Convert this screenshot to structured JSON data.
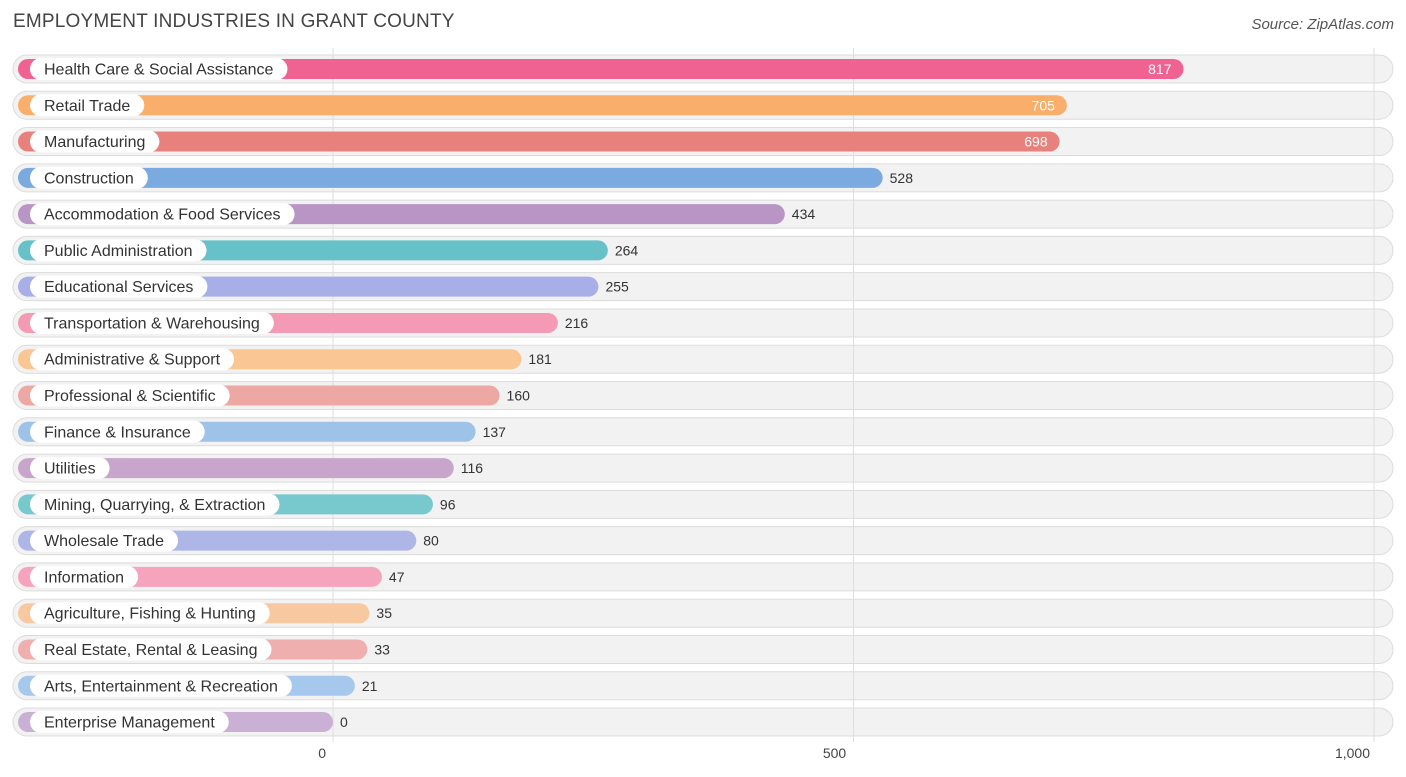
{
  "header": {
    "title": "EMPLOYMENT INDUSTRIES IN GRANT COUNTY",
    "source": "Source: ZipAtlas.com"
  },
  "chart_data": {
    "type": "bar",
    "orientation": "horizontal",
    "title": "EMPLOYMENT INDUSTRIES IN GRANT COUNTY",
    "xlim": [
      0,
      1000
    ],
    "ticks": [
      {
        "value": 0,
        "label": "0"
      },
      {
        "value": 500,
        "label": "500"
      },
      {
        "value": 1000,
        "label": "1,000"
      }
    ],
    "grid": true,
    "categories": [
      "Health Care & Social Assistance",
      "Retail Trade",
      "Manufacturing",
      "Construction",
      "Accommodation & Food Services",
      "Public Administration",
      "Educational Services",
      "Transportation & Warehousing",
      "Administrative & Support",
      "Professional & Scientific",
      "Finance & Insurance",
      "Utilities",
      "Mining, Quarrying, & Extraction",
      "Wholesale Trade",
      "Information",
      "Agriculture, Fishing & Hunting",
      "Real Estate, Rental & Leasing",
      "Arts, Entertainment & Recreation",
      "Enterprise Management"
    ],
    "values": [
      817,
      705,
      698,
      528,
      434,
      264,
      255,
      216,
      181,
      160,
      137,
      116,
      96,
      80,
      47,
      35,
      33,
      21,
      0
    ],
    "value_labels": [
      "817",
      "705",
      "698",
      "528",
      "434",
      "264",
      "255",
      "216",
      "181",
      "160",
      "137",
      "116",
      "96",
      "80",
      "47",
      "35",
      "33",
      "21",
      "0"
    ],
    "colors": [
      "#f06292",
      "#f9ae6b",
      "#e8817b",
      "#7aaadf",
      "#b895c4",
      "#67c1c8",
      "#a7aee8",
      "#f59ab5",
      "#f9c694",
      "#eda8a3",
      "#9fc3e8",
      "#c8a6cc",
      "#78c9cd",
      "#aeb6e8",
      "#f6a4bd",
      "#f8c9a0",
      "#f0afaf",
      "#a6c8ec",
      "#cbb0d6"
    ]
  }
}
